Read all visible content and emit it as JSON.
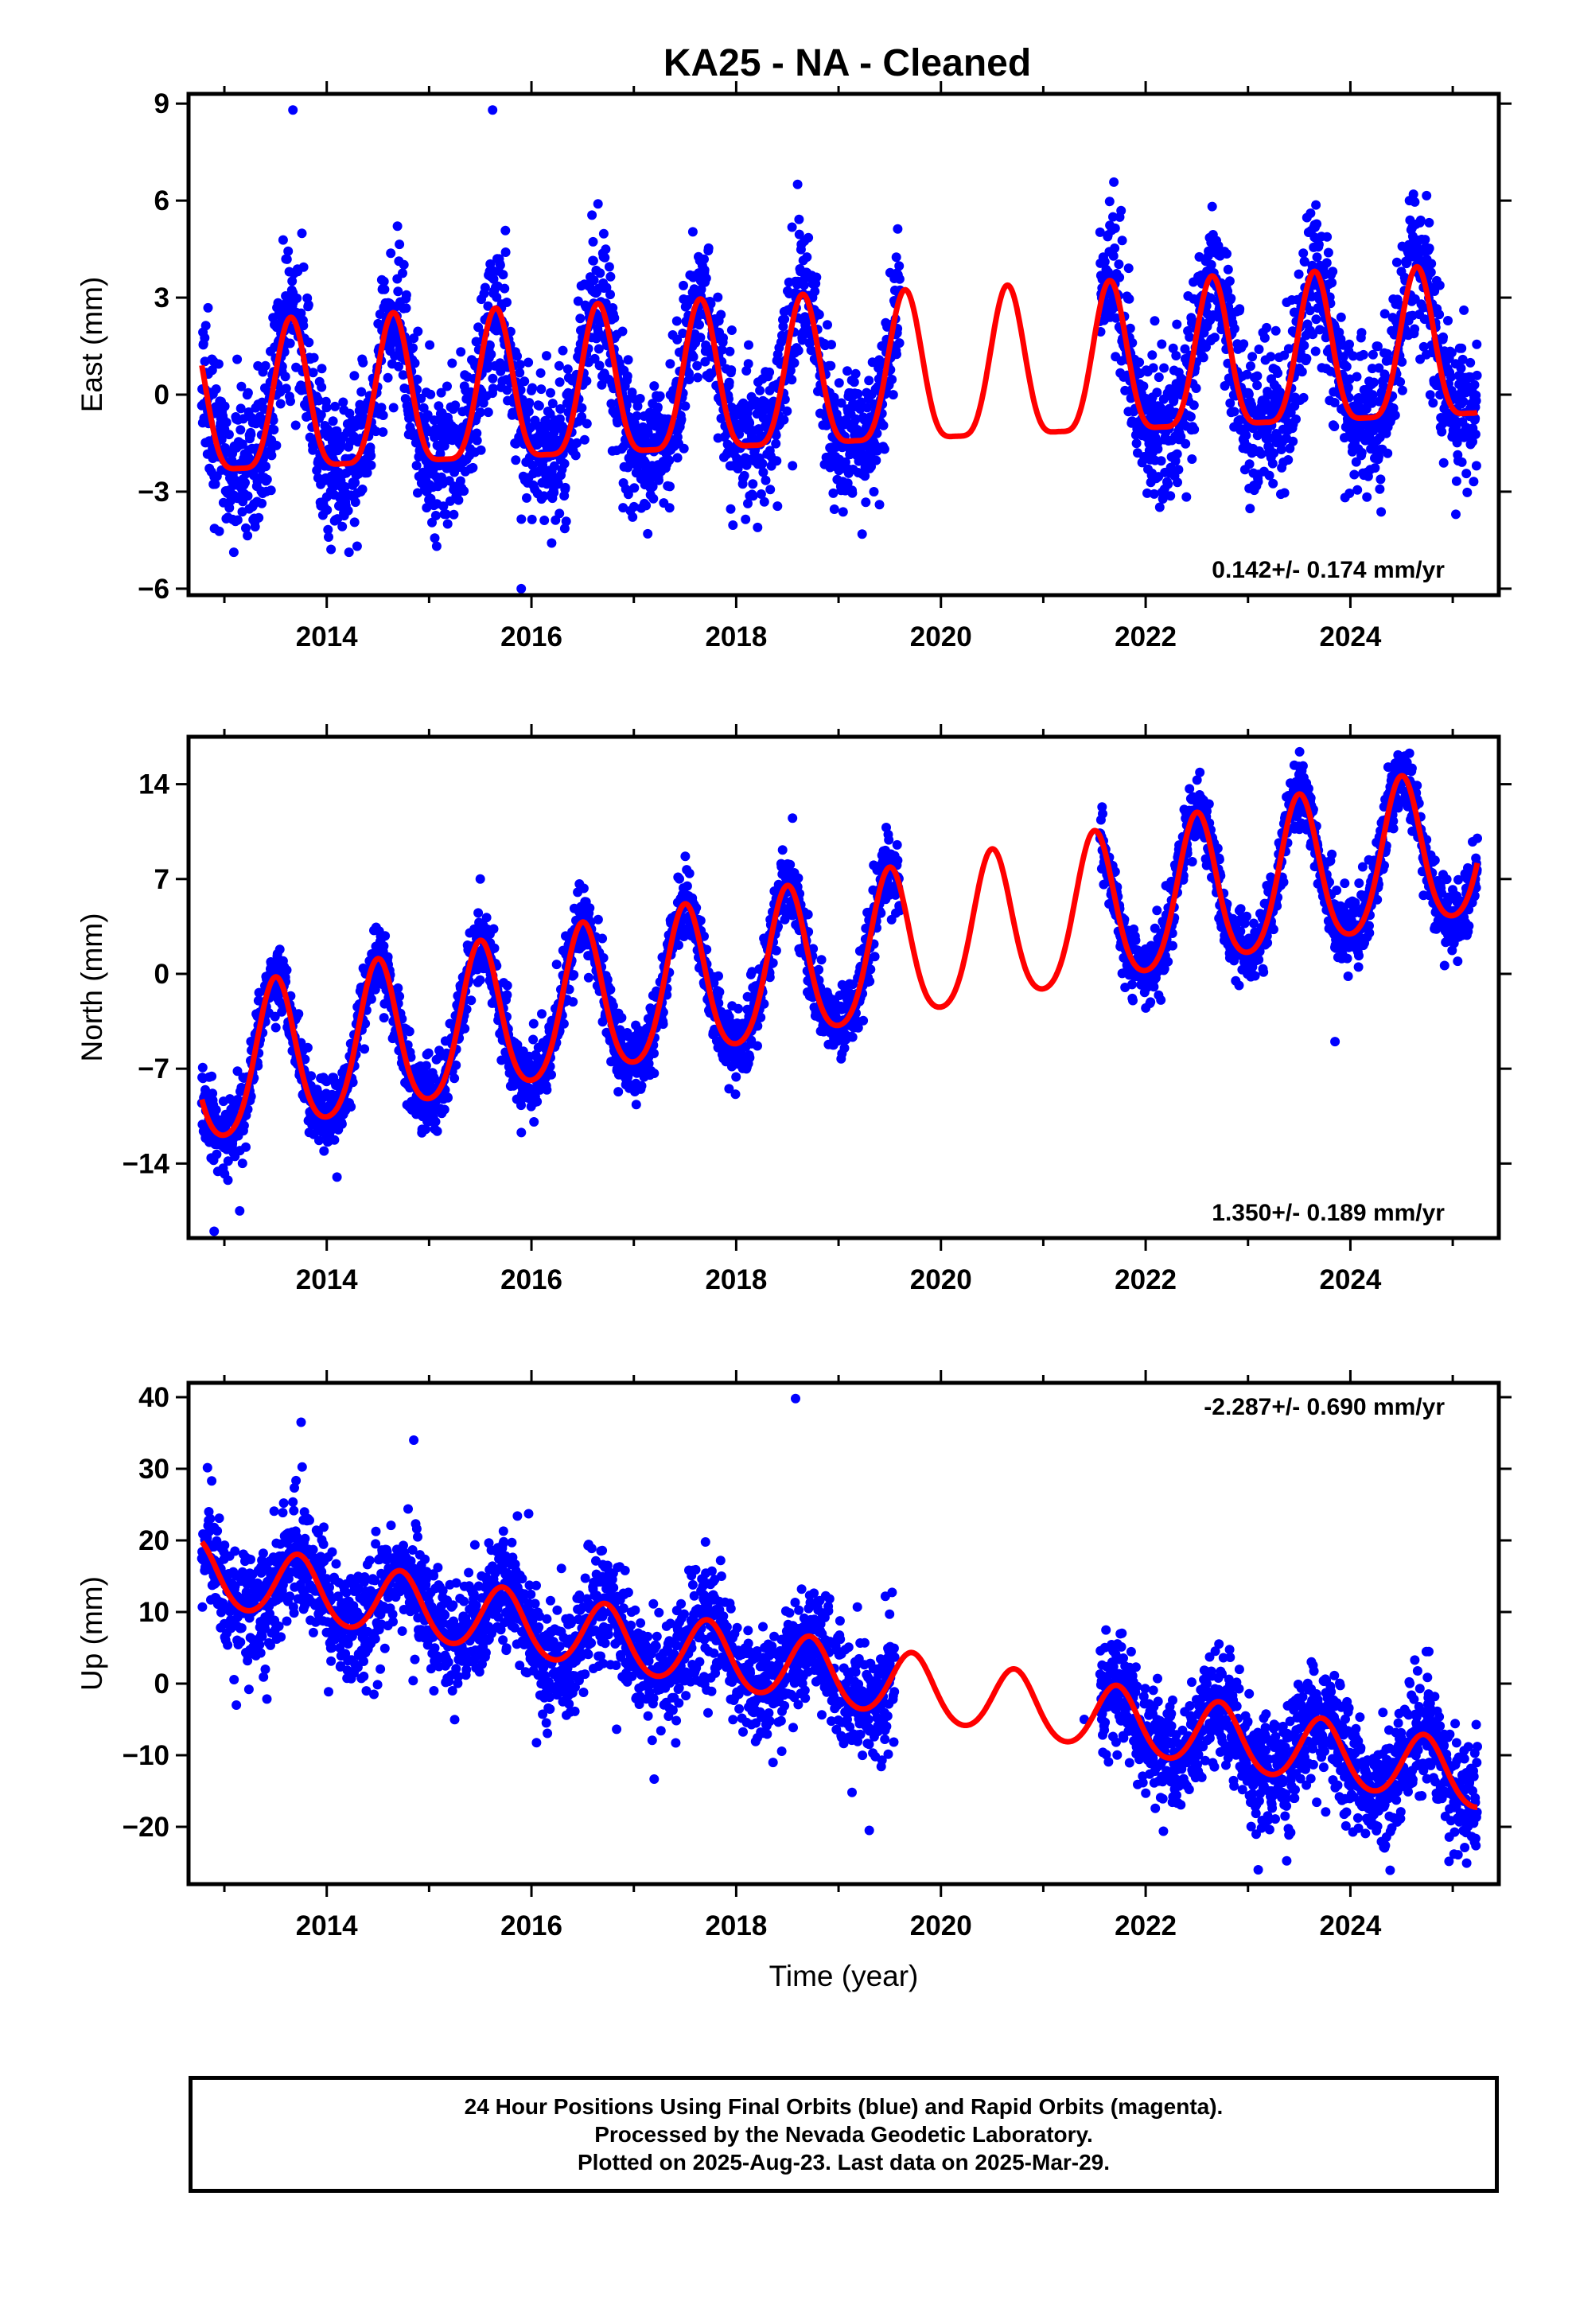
{
  "colors": {
    "data_points": "#0000ff",
    "model_line": "#ff0000",
    "frame": "#000000"
  },
  "chart_data": [
    {
      "type": "scatter",
      "title": "KA25  - NA - Cleaned",
      "xlabel": "",
      "ylabel": "East (mm)",
      "xlim": [
        2012.65,
        2025.45
      ],
      "ylim": [
        -6.2,
        9.3
      ],
      "xticks": [
        2014,
        2016,
        2018,
        2020,
        2022,
        2024
      ],
      "xtick_labels": [
        "2014",
        "2016",
        "2018",
        "2020",
        "2022",
        "2024"
      ],
      "yticks": [
        -6,
        -3,
        0,
        3,
        6,
        9
      ],
      "ytick_labels": [
        "−6",
        "−3",
        "0",
        "3",
        "6",
        "9"
      ],
      "trend_label": "0.142+/- 0.174 mm/yr",
      "trend_position": "bottom-right",
      "gaps": [
        [
          2019.6,
          2021.55
        ]
      ],
      "outliers": [
        [
          2013.67,
          8.8
        ],
        [
          2015.62,
          8.8
        ],
        [
          2018.6,
          6.5
        ],
        [
          2016.65,
          5.9
        ],
        [
          2025.03,
          -3.7
        ],
        [
          2015.9,
          -6.0
        ],
        [
          2019.4,
          -3.4
        ],
        [
          2018.55,
          -2.2
        ]
      ],
      "seasonal_peaks": [
        [
          2013.65,
          2.4
        ],
        [
          2014.65,
          2.5
        ],
        [
          2015.62,
          2.6
        ],
        [
          2016.65,
          2.8
        ],
        [
          2017.65,
          2.9
        ],
        [
          2018.65,
          3.0
        ],
        [
          2019.65,
          3.2
        ],
        [
          2020.65,
          3.3
        ],
        [
          2021.65,
          3.5
        ],
        [
          2022.65,
          3.6
        ],
        [
          2023.65,
          3.8
        ],
        [
          2024.65,
          3.9
        ]
      ],
      "seasonal_troughs": [
        [
          2013.0,
          -2.2
        ],
        [
          2014.0,
          -2.1
        ],
        [
          2015.0,
          -2.0
        ],
        [
          2016.0,
          -1.8
        ],
        [
          2017.0,
          -1.4
        ],
        [
          2018.0,
          -1.5
        ],
        [
          2019.0,
          -1.3
        ],
        [
          2020.0,
          -1.2
        ],
        [
          2021.0,
          -1.1
        ],
        [
          2022.0,
          -0.9
        ],
        [
          2023.0,
          -0.8
        ],
        [
          2024.0,
          -0.6
        ],
        [
          2025.0,
          -0.6
        ]
      ],
      "scatter_sigma": 1.1,
      "model": {
        "trend_mm_per_yr": 0.142,
        "annual_amp": 2.3,
        "annual_peak_frac": 0.65,
        "semiannual_amp": 0.6,
        "value_at_2013": -0.6
      },
      "series": [
        {
          "name": "Final Orbits (blue)"
        },
        {
          "name": "Rapid Orbits (magenta)"
        }
      ]
    },
    {
      "type": "scatter",
      "title": "",
      "xlabel": "",
      "ylabel": "North (mm)",
      "xlim": [
        2012.65,
        2025.45
      ],
      "ylim": [
        -19.5,
        17.5
      ],
      "xticks": [
        2014,
        2016,
        2018,
        2020,
        2022,
        2024
      ],
      "xtick_labels": [
        "2014",
        "2016",
        "2018",
        "2020",
        "2022",
        "2024"
      ],
      "yticks": [
        -14,
        -7,
        0,
        7,
        14
      ],
      "ytick_labels": [
        "−14",
        "−7",
        "0",
        "7",
        "14"
      ],
      "trend_label": "1.350+/- 0.189 mm/yr",
      "trend_position": "bottom-right",
      "gaps": [
        [
          2019.6,
          2021.55
        ]
      ],
      "outliers": [
        [
          2012.9,
          -19.0
        ],
        [
          2013.15,
          -17.5
        ],
        [
          2018.55,
          11.5
        ],
        [
          2023.85,
          -5.0
        ],
        [
          2014.5,
          2.0
        ],
        [
          2015.5,
          7.0
        ],
        [
          2014.1,
          -15.0
        ]
      ],
      "seasonal_peaks": [
        [
          2013.5,
          -1.3
        ],
        [
          2014.5,
          0.0
        ],
        [
          2015.5,
          1.4
        ],
        [
          2016.5,
          2.7
        ],
        [
          2017.5,
          4.1
        ],
        [
          2018.5,
          5.4
        ],
        [
          2019.5,
          6.8
        ],
        [
          2020.5,
          8.1
        ],
        [
          2021.5,
          9.5
        ],
        [
          2022.5,
          10.8
        ],
        [
          2023.5,
          12.2
        ],
        [
          2024.5,
          13.5
        ]
      ],
      "seasonal_troughs": [
        [
          2012.95,
          -12.3
        ],
        [
          2013.95,
          -11.0
        ],
        [
          2014.95,
          -9.6
        ],
        [
          2015.95,
          -8.3
        ],
        [
          2016.95,
          -6.9
        ],
        [
          2017.95,
          -5.6
        ],
        [
          2018.95,
          -4.2
        ],
        [
          2019.95,
          -2.9
        ],
        [
          2020.95,
          -1.5
        ],
        [
          2021.95,
          -0.2
        ],
        [
          2022.95,
          1.2
        ],
        [
          2023.95,
          2.5
        ],
        [
          2024.95,
          3.9
        ]
      ],
      "scatter_sigma": 1.3,
      "model": {
        "trend_mm_per_yr": 1.35,
        "annual_amp": 5.5,
        "annual_peak_frac": 0.5,
        "semiannual_amp": 0.8,
        "value_at_2013": -7.2
      },
      "series": [
        {
          "name": "Final Orbits (blue)"
        },
        {
          "name": "Rapid Orbits (magenta)"
        }
      ]
    },
    {
      "type": "scatter",
      "title": "",
      "xlabel": "Time (year)",
      "ylabel": "Up (mm)",
      "xlim": [
        2012.65,
        2025.45
      ],
      "ylim": [
        -28,
        42
      ],
      "xticks": [
        2014,
        2016,
        2018,
        2020,
        2022,
        2024
      ],
      "xtick_labels": [
        "2014",
        "2016",
        "2018",
        "2020",
        "2022",
        "2024"
      ],
      "yticks": [
        -20,
        -10,
        0,
        10,
        20,
        30,
        40
      ],
      "ytick_labels": [
        "−20",
        "−10",
        "0",
        "10",
        "20",
        "30",
        "40"
      ],
      "trend_label": "-2.287+/- 0.690 mm/yr",
      "trend_position": "top-right",
      "gaps": [
        [
          2019.55,
          2021.55
        ]
      ],
      "outliers": [
        [
          2018.58,
          39.8
        ],
        [
          2013.75,
          36.5
        ],
        [
          2014.85,
          34.0
        ],
        [
          2023.1,
          -26.0
        ],
        [
          2019.3,
          -20.5
        ],
        [
          2021.4,
          -5.0
        ],
        [
          2013.4,
          2.0
        ]
      ],
      "seasonal_peaks": [
        [
          2012.8,
          20.5
        ],
        [
          2013.72,
          18.5
        ],
        [
          2014.72,
          16.2
        ],
        [
          2015.72,
          14.0
        ],
        [
          2016.72,
          11.7
        ],
        [
          2017.72,
          9.4
        ],
        [
          2018.72,
          7.1
        ],
        [
          2019.72,
          4.8
        ],
        [
          2020.72,
          2.5
        ],
        [
          2021.72,
          0.2
        ],
        [
          2022.72,
          -2.1
        ],
        [
          2023.72,
          -4.4
        ],
        [
          2024.72,
          -6.7
        ]
      ],
      "seasonal_troughs": [
        [
          2013.3,
          10.0
        ],
        [
          2014.3,
          7.7
        ],
        [
          2015.3,
          5.4
        ],
        [
          2016.3,
          3.1
        ],
        [
          2017.3,
          0.8
        ],
        [
          2018.3,
          -1.5
        ],
        [
          2019.3,
          -3.8
        ],
        [
          2020.3,
          -6.1
        ],
        [
          2021.3,
          -8.4
        ],
        [
          2022.3,
          -10.7
        ],
        [
          2023.3,
          -13.0
        ],
        [
          2024.3,
          -15.3
        ],
        [
          2025.25,
          -17.5
        ]
      ],
      "scatter_sigma": 4.0,
      "model": {
        "trend_mm_per_yr": -2.287,
        "annual_amp": 4.5,
        "annual_peak_frac": 0.72,
        "semiannual_amp": 0.4,
        "value_at_2013": 14.8
      },
      "series": [
        {
          "name": "Final Orbits (blue)"
        },
        {
          "name": "Rapid Orbits (magenta)"
        }
      ]
    }
  ],
  "footer": {
    "line1": "24 Hour Positions Using Final Orbits (blue) and Rapid Orbits (magenta).",
    "line2": "Processed by the Nevada Geodetic Laboratory.",
    "line3": "Plotted on 2025-Aug-23. Last data on 2025-Mar-29."
  }
}
